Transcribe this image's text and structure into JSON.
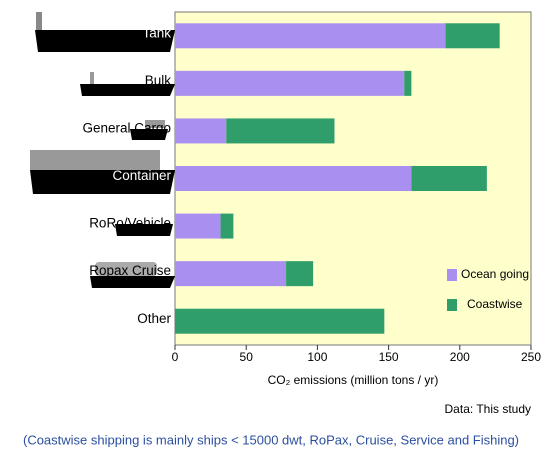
{
  "chart_data": {
    "type": "stacked-barh",
    "categories": [
      "Tank",
      "Bulk",
      "General Cargo",
      "Container",
      "RoRo/Vehicle",
      "Ropax Cruise",
      "Other"
    ],
    "series": [
      {
        "name": "Ocean going",
        "color": "#a990f0",
        "values": [
          190,
          161,
          36,
          166,
          32,
          78,
          0
        ]
      },
      {
        "name": "Coastwise",
        "color": "#2f9e6b",
        "values": [
          38,
          5,
          76,
          53,
          9,
          19,
          147
        ]
      }
    ],
    "xlim": [
      0,
      250
    ],
    "xticks": [
      0,
      50,
      100,
      150,
      200,
      250
    ],
    "xlabel": "CO₂ emissions (million tons / yr)",
    "source": "Data: This study",
    "note": "(Coastwise shipping is mainly ships < 15000 dwt, RoPax, Cruise, Service and Fishing)",
    "legend": "lower right"
  }
}
